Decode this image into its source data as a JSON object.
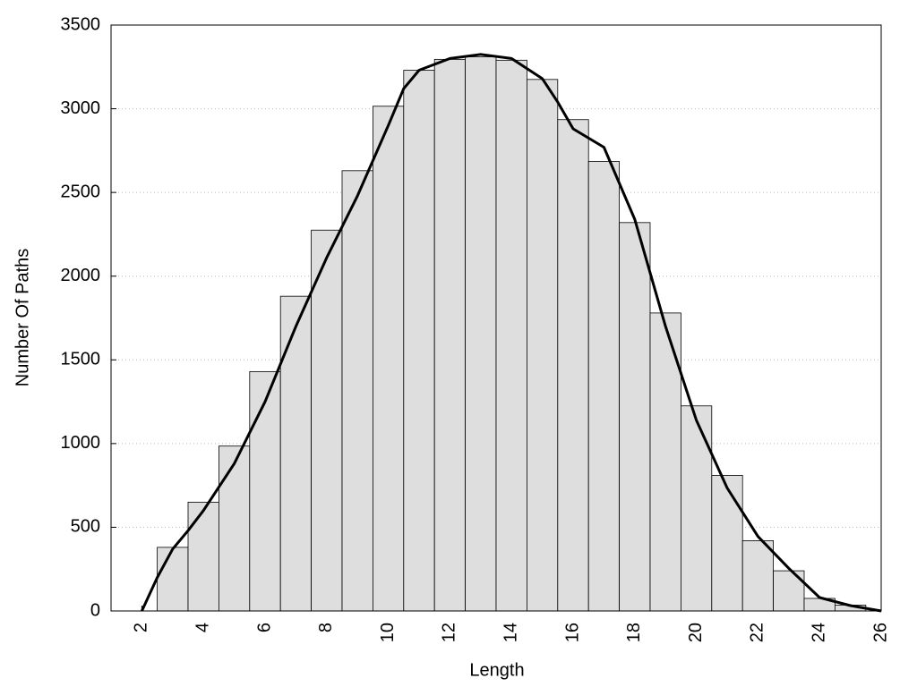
{
  "chart_data": {
    "type": "histogram",
    "x_label": "Length",
    "y_label": "Number Of Paths",
    "bins": [
      2.5,
      3.5,
      4.5,
      5.5,
      6.5,
      7.5,
      8.5,
      9.5,
      10.5,
      11.5,
      12.5,
      13.5,
      14.5,
      15.5,
      16.5,
      17.5,
      18.5,
      19.5,
      20.5,
      21.5,
      22.5,
      23.5,
      24.5,
      25.5
    ],
    "values": [
      380,
      650,
      985,
      1430,
      1880,
      2275,
      2630,
      3015,
      3230,
      3295,
      3310,
      3290,
      3175,
      2935,
      2685,
      2320,
      1780,
      1225,
      810,
      420,
      240,
      75,
      35
    ],
    "color": "#dedede",
    "curve": {
      "color": "#000000",
      "x": [
        2,
        2.5,
        3,
        3.5,
        4,
        5,
        6,
        7,
        8,
        9,
        10,
        10.5,
        11,
        12,
        13,
        14,
        15,
        15.5,
        16,
        17,
        18,
        19,
        20,
        21,
        22,
        23,
        24,
        25,
        26
      ],
      "values": [
        0,
        200,
        370,
        480,
        600,
        880,
        1250,
        1700,
        2110,
        2480,
        2900,
        3120,
        3230,
        3300,
        3325,
        3300,
        3180,
        3040,
        2880,
        2770,
        2340,
        1700,
        1140,
        735,
        445,
        255,
        80,
        32,
        0
      ]
    },
    "xlim": [
      1,
      26
    ],
    "xticks": [
      2,
      4,
      6,
      8,
      10,
      12,
      14,
      16,
      18,
      20,
      22,
      24,
      26
    ],
    "ylim": [
      0,
      3500
    ],
    "yticks": [
      0,
      500,
      1000,
      1500,
      2000,
      2500,
      3000,
      3500
    ],
    "grid": true
  }
}
